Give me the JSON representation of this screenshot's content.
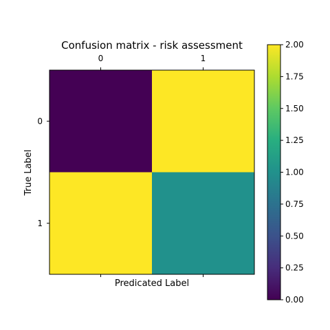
{
  "chart_data": {
    "type": "heatmap",
    "title": "Confusion matrix - risk assessment",
    "xlabel": "Predicated Label",
    "ylabel": "True Label",
    "x_categories": [
      "0",
      "1"
    ],
    "y_categories": [
      "0",
      "1"
    ],
    "values": [
      [
        0,
        2
      ],
      [
        2,
        1
      ]
    ],
    "colormap": "viridis",
    "colorbar": {
      "range": [
        0,
        2
      ],
      "ticks": [
        "0.00",
        "0.25",
        "0.50",
        "0.75",
        "1.00",
        "1.25",
        "1.50",
        "1.75",
        "2.00"
      ]
    },
    "colors": {
      "low": "#440154",
      "mid": "#21918c",
      "high": "#fde725"
    }
  }
}
